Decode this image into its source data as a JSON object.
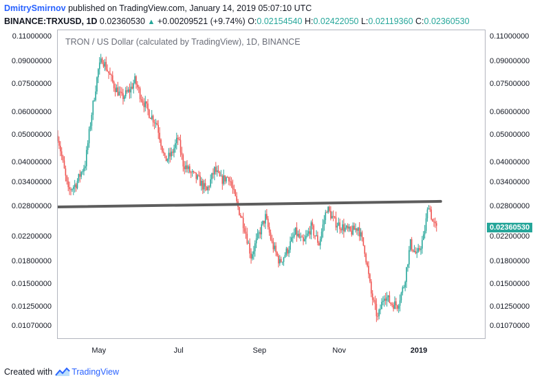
{
  "header": {
    "author": "DmitrySmirnov",
    "published_text": "published on TradingView.com, January 14, 2019 05:07:10 UTC",
    "symbol": "BINANCE:TRXUSD, 1D",
    "last": "0.02360530",
    "change": "+0.00209521 (+9.74%)",
    "o_label": "O:",
    "o_value": "0.02154540",
    "h_label": "H:",
    "h_value": "0.02422050",
    "l_label": "L:",
    "l_value": "0.02119360",
    "c_label": "C:",
    "c_value": "0.02360530"
  },
  "footer": {
    "created_with": "Created with",
    "brand": "TradingView"
  },
  "colors": {
    "up": "#26a69a",
    "down": "#ef5350",
    "trendline": "#5d5d5d",
    "accent": "#2962ff"
  },
  "chart_data": {
    "type": "candlestick",
    "title": "TRON / US Dollar (calculated by TradingView), 1D, BINANCE",
    "scale": "log",
    "ylim": [
      0.0098,
      0.117
    ],
    "y_ticks": [
      "0.11000000",
      "0.09000000",
      "0.07500000",
      "0.06000000",
      "0.05000000",
      "0.04000000",
      "0.03400000",
      "0.02800000",
      "0.02200000",
      "0.01800000",
      "0.01500000",
      "0.01250000",
      "0.01070000"
    ],
    "x_ticks": [
      {
        "label": "May",
        "date": "2018-05-01",
        "bold": false
      },
      {
        "label": "Jul",
        "date": "2018-07-01",
        "bold": false
      },
      {
        "label": "Sep",
        "date": "2018-09-01",
        "bold": false
      },
      {
        "label": "Nov",
        "date": "2018-11-01",
        "bold": false
      },
      {
        "label": "2019",
        "date": "2019-01-01",
        "bold": true
      }
    ],
    "xlim": [
      "2018-03-30",
      "2019-02-20"
    ],
    "last_price": "0.02360530",
    "trendline": {
      "from": {
        "date": "2018-03-30",
        "value": 0.0282
      },
      "to": {
        "date": "2019-01-14",
        "value": 0.0295
      }
    },
    "path_points": [
      [
        "2018-03-30",
        0.05
      ],
      [
        "2018-04-03",
        0.04
      ],
      [
        "2018-04-07",
        0.032
      ],
      [
        "2018-04-13",
        0.034
      ],
      [
        "2018-04-20",
        0.04
      ],
      [
        "2018-04-25",
        0.06
      ],
      [
        "2018-04-30",
        0.085
      ],
      [
        "2018-05-03",
        0.093
      ],
      [
        "2018-05-07",
        0.085
      ],
      [
        "2018-05-12",
        0.075
      ],
      [
        "2018-05-18",
        0.068
      ],
      [
        "2018-05-24",
        0.072
      ],
      [
        "2018-05-28",
        0.078
      ],
      [
        "2018-06-02",
        0.068
      ],
      [
        "2018-06-08",
        0.06
      ],
      [
        "2018-06-14",
        0.055
      ],
      [
        "2018-06-20",
        0.041
      ],
      [
        "2018-06-25",
        0.043
      ],
      [
        "2018-06-30",
        0.049
      ],
      [
        "2018-07-04",
        0.04
      ],
      [
        "2018-07-10",
        0.037
      ],
      [
        "2018-07-16",
        0.035
      ],
      [
        "2018-07-22",
        0.032
      ],
      [
        "2018-07-28",
        0.038
      ],
      [
        "2018-08-02",
        0.035
      ],
      [
        "2018-08-08",
        0.036
      ],
      [
        "2018-08-14",
        0.029
      ],
      [
        "2018-08-20",
        0.024
      ],
      [
        "2018-08-25",
        0.019
      ],
      [
        "2018-08-30",
        0.022
      ],
      [
        "2018-09-05",
        0.026
      ],
      [
        "2018-09-10",
        0.021
      ],
      [
        "2018-09-16",
        0.018
      ],
      [
        "2018-09-22",
        0.02
      ],
      [
        "2018-09-28",
        0.023
      ],
      [
        "2018-10-04",
        0.021
      ],
      [
        "2018-10-10",
        0.024
      ],
      [
        "2018-10-16",
        0.021
      ],
      [
        "2018-10-22",
        0.028
      ],
      [
        "2018-10-28",
        0.025
      ],
      [
        "2018-11-03",
        0.024
      ],
      [
        "2018-11-09",
        0.023
      ],
      [
        "2018-11-15",
        0.024
      ],
      [
        "2018-11-20",
        0.02
      ],
      [
        "2018-11-25",
        0.014
      ],
      [
        "2018-11-30",
        0.0115
      ],
      [
        "2018-12-05",
        0.014
      ],
      [
        "2018-12-10",
        0.013
      ],
      [
        "2018-12-15",
        0.0128
      ],
      [
        "2018-12-20",
        0.015
      ],
      [
        "2018-12-25",
        0.021
      ],
      [
        "2018-12-30",
        0.019
      ],
      [
        "2019-01-04",
        0.022
      ],
      [
        "2019-01-08",
        0.029
      ],
      [
        "2019-01-11",
        0.025
      ],
      [
        "2019-01-14",
        0.0236
      ]
    ]
  }
}
